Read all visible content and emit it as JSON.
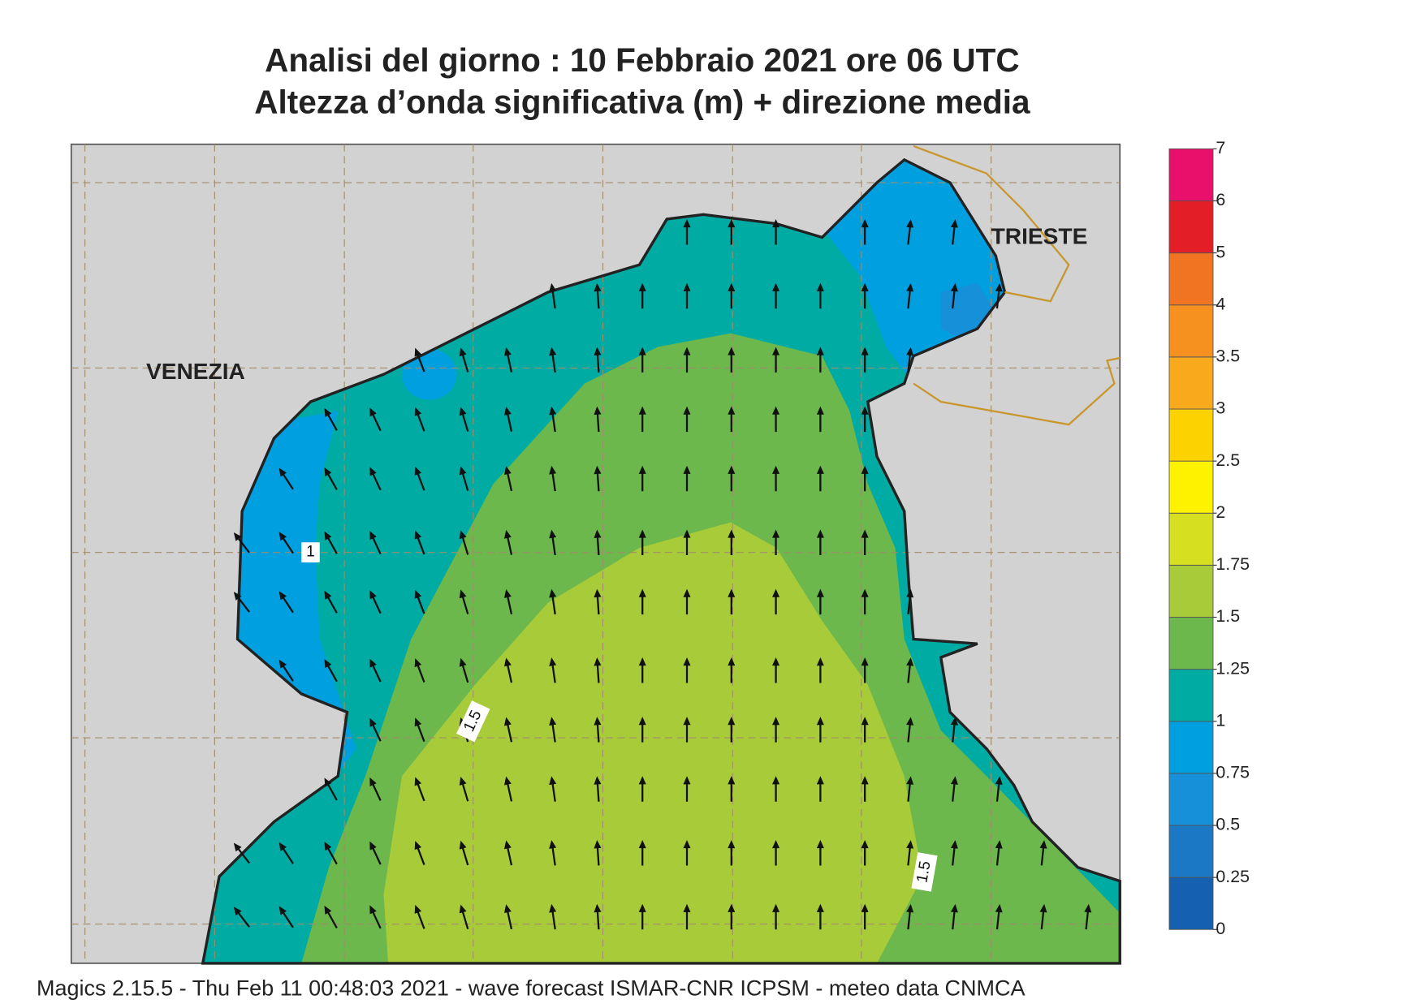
{
  "title": "Analisi del giorno :  10  Febbraio 2021    ore 06 UTC",
  "subtitle": "Altezza d’onda significativa (m) + direzione media",
  "places": [
    "VENEZIA",
    "TRIESTE"
  ],
  "contour_labels": [
    1,
    1.5,
    1.5
  ],
  "colorbar": {
    "levels": [
      0,
      0.25,
      0.5,
      0.75,
      1,
      1.25,
      1.5,
      1.75,
      2,
      2.5,
      3,
      3.5,
      4,
      5,
      6,
      7
    ],
    "colors": [
      "#1560b0",
      "#1a78c4",
      "#1690d8",
      "#009fe0",
      "#00aba3",
      "#6cb84c",
      "#a8cb3a",
      "#d6e020",
      "#fff200",
      "#fcd200",
      "#f8aa1c",
      "#f6901f",
      "#f07422",
      "#e41e26",
      "#e8106a"
    ]
  },
  "footer": "Magics 2.15.5 - Thu Feb 11 00:48:03 2021 - wave forecast  ISMAR-CNR  ICPSM - meteo data   CNMCA"
}
